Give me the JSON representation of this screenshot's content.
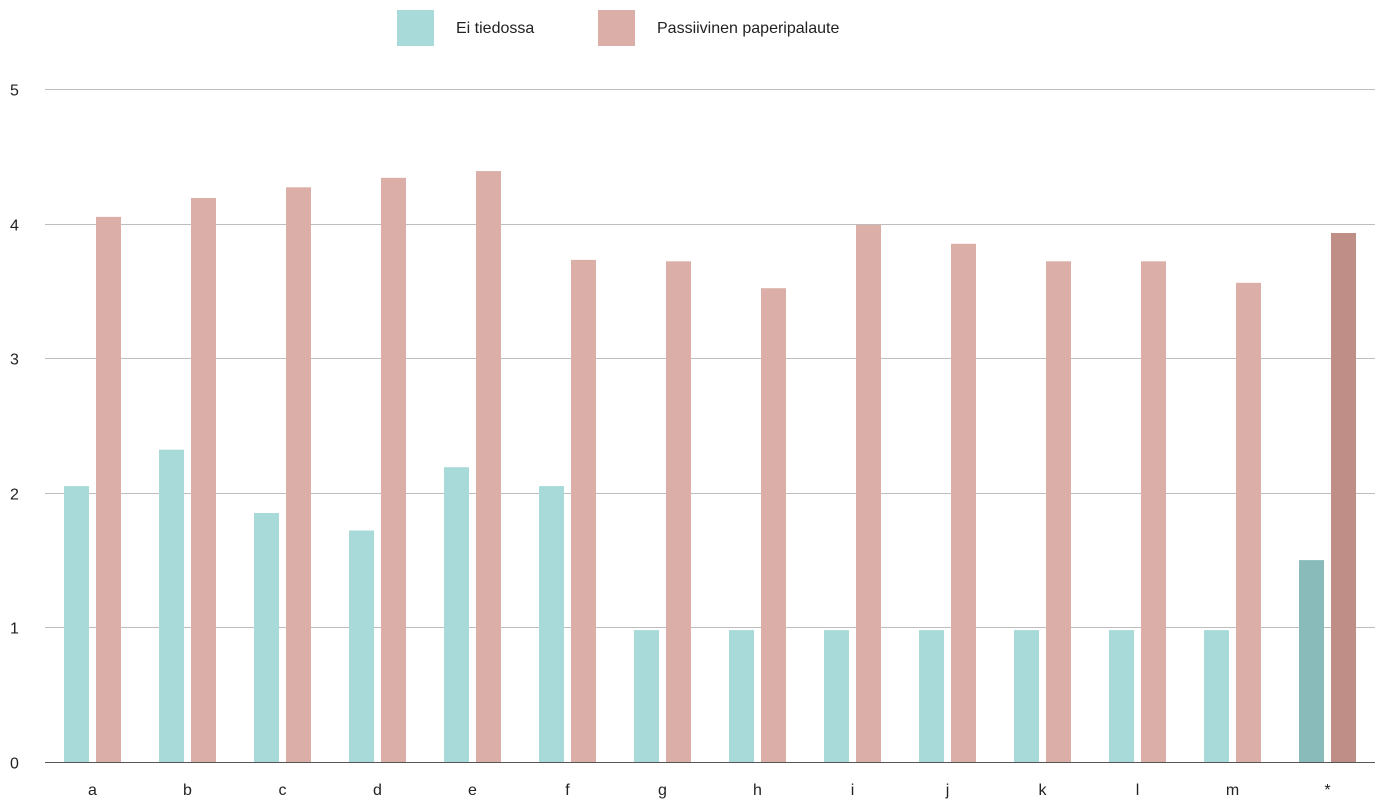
{
  "chart_data": {
    "type": "bar",
    "categories": [
      "a",
      "b",
      "c",
      "d",
      "e",
      "f",
      "g",
      "h",
      "i",
      "j",
      "k",
      "l",
      "m",
      "*"
    ],
    "series": [
      {
        "name": "Ei tiedossa",
        "color": "#a8dad9",
        "highlight_color": "#88bbb9",
        "values": [
          2.05,
          2.32,
          1.85,
          1.72,
          2.19,
          2.05,
          0.98,
          0.98,
          0.98,
          0.98,
          0.98,
          0.98,
          0.98,
          1.5
        ]
      },
      {
        "name": "Passiivinen paperipalaute",
        "color": "#dbafa8",
        "highlight_color": "#bf8f87",
        "values": [
          4.05,
          4.19,
          4.27,
          4.34,
          4.39,
          3.73,
          3.72,
          3.52,
          3.99,
          3.85,
          3.72,
          3.72,
          3.56,
          3.93
        ]
      }
    ],
    "highlight_category": "*",
    "ylim": [
      0,
      5
    ],
    "yticks": [
      0,
      1,
      2,
      3,
      4,
      5
    ],
    "grid": true,
    "legend_position": "top-center",
    "title": "",
    "xlabel": "",
    "ylabel": ""
  }
}
